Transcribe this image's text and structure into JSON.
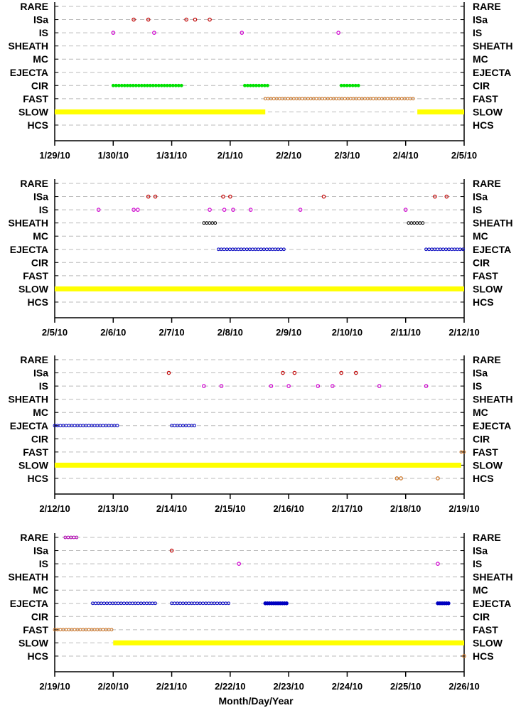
{
  "xlabel": "Month/Day/Year",
  "colors": {
    "RARE": "#b000b0",
    "ISa": "#c00000",
    "IS": "#d000d0",
    "SHEATH": "#000000",
    "EJECTA": "#0000c0",
    "CIR": "#00e000",
    "FAST": "#c87020",
    "SLOW": "#ffff00",
    "HCS": "#c87020",
    "grid": "#bbbbbb"
  },
  "chart_data": [
    {
      "type": "scatter",
      "categories": [
        "RARE",
        "ISa",
        "IS",
        "SHEATH",
        "MC",
        "EJECTA",
        "CIR",
        "FAST",
        "SLOW",
        "HCS"
      ],
      "xlim": [
        0,
        7
      ],
      "tick_labels": [
        "1/29/10",
        "1/30/10",
        "1/31/10",
        "2/1/10",
        "2/2/10",
        "2/3/10",
        "2/4/10",
        "2/5/10"
      ],
      "segments": [
        {
          "cat": "CIR",
          "start": 1.0,
          "end": 2.2,
          "style": "dots"
        },
        {
          "cat": "CIR",
          "start": 3.25,
          "end": 3.65,
          "style": "dots"
        },
        {
          "cat": "CIR",
          "start": 4.9,
          "end": 5.2,
          "style": "dots"
        },
        {
          "cat": "FAST",
          "start": 3.6,
          "end": 6.15,
          "style": "dots"
        },
        {
          "cat": "SLOW",
          "start": 0.0,
          "end": 3.6,
          "style": "bar"
        },
        {
          "cat": "SLOW",
          "start": 6.2,
          "end": 7.0,
          "style": "bar"
        }
      ],
      "points": [
        {
          "cat": "ISa",
          "x": 1.35
        },
        {
          "cat": "ISa",
          "x": 1.6
        },
        {
          "cat": "ISa",
          "x": 2.25
        },
        {
          "cat": "ISa",
          "x": 2.4
        },
        {
          "cat": "ISa",
          "x": 2.65
        },
        {
          "cat": "IS",
          "x": 1.0
        },
        {
          "cat": "IS",
          "x": 1.7
        },
        {
          "cat": "IS",
          "x": 3.2
        },
        {
          "cat": "IS",
          "x": 4.85
        }
      ]
    },
    {
      "type": "scatter",
      "categories": [
        "RARE",
        "ISa",
        "IS",
        "SHEATH",
        "MC",
        "EJECTA",
        "CIR",
        "FAST",
        "SLOW",
        "HCS"
      ],
      "xlim": [
        0,
        7
      ],
      "tick_labels": [
        "2/5/10",
        "2/6/10",
        "2/7/10",
        "2/8/10",
        "2/9/10",
        "2/10/10",
        "2/11/10",
        "2/12/10"
      ],
      "segments": [
        {
          "cat": "SHEATH",
          "start": 2.55,
          "end": 2.75,
          "style": "dots"
        },
        {
          "cat": "SHEATH",
          "start": 6.05,
          "end": 6.3,
          "style": "dots"
        },
        {
          "cat": "EJECTA",
          "start": 2.8,
          "end": 3.95,
          "style": "dots"
        },
        {
          "cat": "EJECTA",
          "start": 6.35,
          "end": 7.0,
          "style": "dots"
        },
        {
          "cat": "SLOW",
          "start": 0.0,
          "end": 7.0,
          "style": "bar"
        }
      ],
      "points": [
        {
          "cat": "ISa",
          "x": 1.6
        },
        {
          "cat": "ISa",
          "x": 1.72
        },
        {
          "cat": "ISa",
          "x": 2.88
        },
        {
          "cat": "ISa",
          "x": 3.0
        },
        {
          "cat": "ISa",
          "x": 4.6
        },
        {
          "cat": "ISa",
          "x": 6.5
        },
        {
          "cat": "ISa",
          "x": 6.7
        },
        {
          "cat": "IS",
          "x": 0.75
        },
        {
          "cat": "IS",
          "x": 1.35
        },
        {
          "cat": "IS",
          "x": 1.42
        },
        {
          "cat": "IS",
          "x": 2.65
        },
        {
          "cat": "IS",
          "x": 2.9
        },
        {
          "cat": "IS",
          "x": 3.05
        },
        {
          "cat": "IS",
          "x": 3.35
        },
        {
          "cat": "IS",
          "x": 4.2
        },
        {
          "cat": "IS",
          "x": 6.0
        }
      ]
    },
    {
      "type": "scatter",
      "categories": [
        "RARE",
        "ISa",
        "IS",
        "SHEATH",
        "MC",
        "EJECTA",
        "CIR",
        "FAST",
        "SLOW",
        "HCS"
      ],
      "xlim": [
        0,
        7
      ],
      "tick_labels": [
        "2/12/10",
        "2/13/10",
        "2/14/10",
        "2/15/10",
        "2/16/10",
        "2/17/10",
        "2/18/10",
        "2/19/10"
      ],
      "segments": [
        {
          "cat": "EJECTA",
          "start": 0.0,
          "end": 1.1,
          "style": "dots"
        },
        {
          "cat": "EJECTA",
          "start": 2.0,
          "end": 2.4,
          "style": "dots"
        },
        {
          "cat": "FAST",
          "start": 6.95,
          "end": 7.1,
          "style": "dots"
        },
        {
          "cat": "SLOW",
          "start": 0.0,
          "end": 6.95,
          "style": "bar"
        }
      ],
      "points": [
        {
          "cat": "ISa",
          "x": 1.95
        },
        {
          "cat": "ISa",
          "x": 3.9
        },
        {
          "cat": "ISa",
          "x": 4.1
        },
        {
          "cat": "ISa",
          "x": 4.9
        },
        {
          "cat": "ISa",
          "x": 5.15
        },
        {
          "cat": "IS",
          "x": 2.55
        },
        {
          "cat": "IS",
          "x": 2.85
        },
        {
          "cat": "IS",
          "x": 3.7
        },
        {
          "cat": "IS",
          "x": 4.0
        },
        {
          "cat": "IS",
          "x": 4.5
        },
        {
          "cat": "IS",
          "x": 4.75
        },
        {
          "cat": "IS",
          "x": 5.55
        },
        {
          "cat": "IS",
          "x": 6.35
        },
        {
          "cat": "HCS",
          "x": 5.85
        },
        {
          "cat": "HCS",
          "x": 5.92
        },
        {
          "cat": "HCS",
          "x": 6.55
        }
      ]
    },
    {
      "type": "scatter",
      "categories": [
        "RARE",
        "ISa",
        "IS",
        "SHEATH",
        "MC",
        "EJECTA",
        "CIR",
        "FAST",
        "SLOW",
        "HCS"
      ],
      "xlim": [
        0,
        7
      ],
      "tick_labels": [
        "2/19/10",
        "2/20/10",
        "2/21/10",
        "2/22/10",
        "2/23/10",
        "2/24/10",
        "2/25/10",
        "2/26/10"
      ],
      "segments": [
        {
          "cat": "RARE",
          "start": 0.18,
          "end": 0.4,
          "style": "dots",
          "color": "RARE"
        },
        {
          "cat": "EJECTA",
          "start": 0.65,
          "end": 1.75,
          "style": "dots"
        },
        {
          "cat": "EJECTA",
          "start": 2.0,
          "end": 3.0,
          "style": "dots"
        },
        {
          "cat": "EJECTA",
          "start": 3.6,
          "end": 4.0,
          "style": "solid"
        },
        {
          "cat": "EJECTA",
          "start": 6.55,
          "end": 6.75,
          "style": "solid"
        },
        {
          "cat": "FAST",
          "start": 0.0,
          "end": 1.0,
          "style": "dots"
        },
        {
          "cat": "SLOW",
          "start": 1.0,
          "end": 7.0,
          "style": "bar"
        }
      ],
      "points": [
        {
          "cat": "ISa",
          "x": 2.0
        },
        {
          "cat": "IS",
          "x": 3.15
        },
        {
          "cat": "IS",
          "x": 6.55
        },
        {
          "cat": "HCS",
          "x": 7.0
        }
      ]
    }
  ]
}
